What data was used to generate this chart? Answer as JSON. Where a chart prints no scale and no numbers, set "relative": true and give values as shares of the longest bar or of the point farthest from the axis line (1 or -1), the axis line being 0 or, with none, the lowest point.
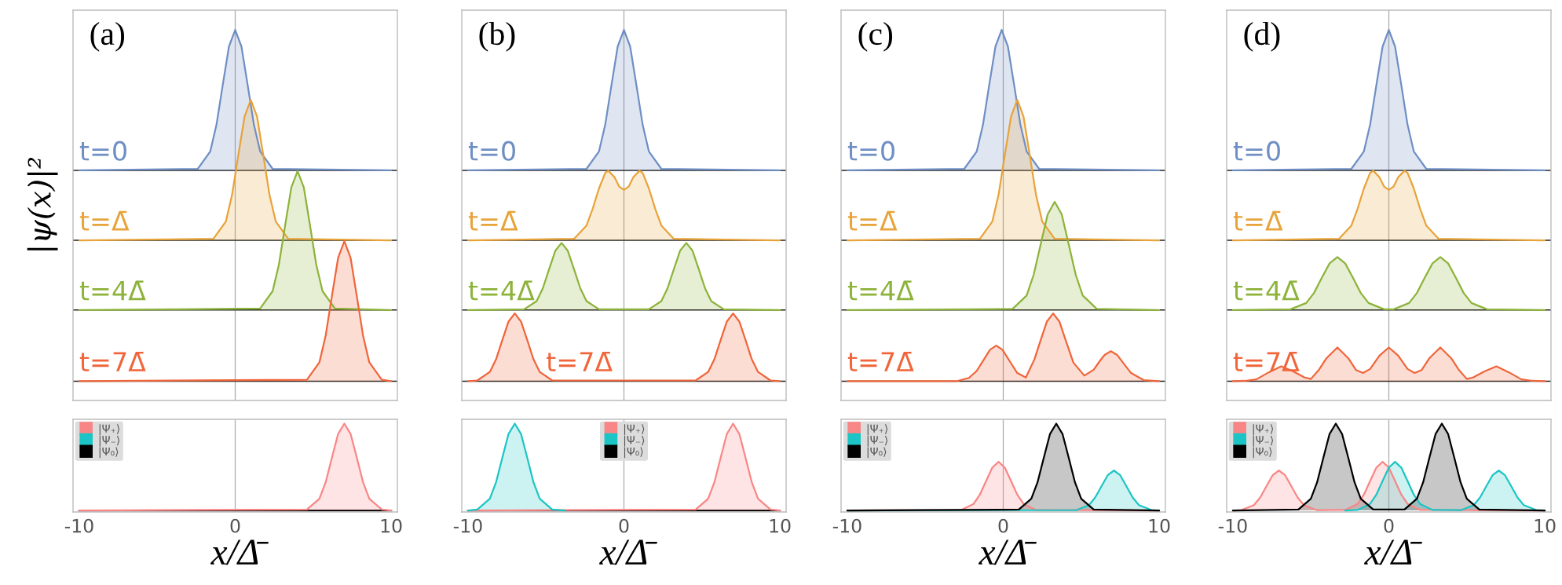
{
  "chart_data": [
    {
      "type": "area",
      "relative": true,
      "xlim": [
        -10.4,
        10.4
      ],
      "annotations": [
        "(a)"
      ],
      "ylabel": "|ψ(x)|²",
      "ref_lines": [
        {
          "axis": "x",
          "value": 0,
          "color": "#aaaaaa"
        },
        {
          "axis": "y",
          "value": 0.621,
          "color": "#222222"
        },
        {
          "axis": "y",
          "value": 0.432,
          "color": "#222222"
        },
        {
          "axis": "y",
          "value": 0.244,
          "color": "#222222"
        },
        {
          "axis": "y",
          "value": 0.052,
          "color": "#222222"
        }
      ],
      "series": [
        {
          "name": "t=0",
          "color": "#6f8fc4",
          "x": [
            -10,
            -2.4,
            -1.6,
            -1.2,
            -0.8,
            -0.4,
            0,
            0.4,
            0.8,
            1.2,
            1.6,
            2.4,
            10
          ],
          "values": [
            0.621,
            0.625,
            0.672,
            0.744,
            0.851,
            0.955,
            1,
            0.955,
            0.851,
            0.744,
            0.672,
            0.625,
            0.621
          ]
        },
        {
          "name": "t=Δ̄",
          "color": "#e8a33a",
          "x": [
            -10,
            -1.4,
            -0.6,
            -0.2,
            0.2,
            0.6,
            1,
            1.4,
            1.8,
            2.2,
            2.6,
            3.4,
            10
          ],
          "values": [
            0.432,
            0.436,
            0.483,
            0.555,
            0.662,
            0.766,
            0.811,
            0.766,
            0.662,
            0.555,
            0.483,
            0.436,
            0.432
          ]
        },
        {
          "name": "t=4Δ̄",
          "color": "#8db33a",
          "x": [
            -10,
            1.6,
            2.4,
            2.8,
            3.2,
            3.6,
            4,
            4.4,
            4.8,
            5.2,
            5.6,
            6.4,
            10
          ],
          "values": [
            0.244,
            0.248,
            0.295,
            0.366,
            0.472,
            0.575,
            0.619,
            0.575,
            0.472,
            0.366,
            0.295,
            0.248,
            0.244
          ]
        },
        {
          "name": "t=7Δ̄",
          "color": "#f0653a",
          "x": [
            -10,
            4.6,
            5.4,
            5.8,
            6.2,
            6.6,
            7,
            7.4,
            7.8,
            8.2,
            8.6,
            9.4,
            10
          ],
          "values": [
            0.052,
            0.056,
            0.103,
            0.175,
            0.281,
            0.385,
            0.43,
            0.385,
            0.281,
            0.175,
            0.103,
            0.056,
            0.052
          ]
        }
      ]
    },
    {
      "type": "area",
      "relative": true,
      "xlim": [
        -10.4,
        10.4
      ],
      "xticks": [
        -10,
        0,
        10
      ],
      "xlabel": "x/Δ̄",
      "legend": "top left",
      "ref_lines": [
        {
          "axis": "x",
          "value": 0,
          "color": "#aaaaaa"
        }
      ],
      "series": [
        {
          "name": "|Ψ₊⟩",
          "color": "#f98686",
          "x": [
            -10,
            4.6,
            5.4,
            5.8,
            6.2,
            6.6,
            7,
            7.4,
            7.8,
            8.2,
            8.6,
            9.4,
            10
          ],
          "values": [
            0,
            0.011,
            0.135,
            0.325,
            0.607,
            0.882,
            1,
            0.882,
            0.607,
            0.325,
            0.135,
            0.011,
            0
          ]
        },
        {
          "name": "|Ψ₋⟩",
          "type": "line",
          "color": "#1cc5c5",
          "values": [
            null
          ]
        },
        {
          "name": "|Ψ₀⟩",
          "type": "line",
          "color": "#000000",
          "x": [
            -10,
            10
          ],
          "values": [
            0,
            0
          ]
        }
      ]
    },
    {
      "type": "area",
      "relative": true,
      "xlim": [
        -10.4,
        10.4
      ],
      "annotations": [
        "(b)"
      ],
      "ref_lines": [
        {
          "axis": "x",
          "value": 0,
          "color": "#aaaaaa"
        },
        {
          "axis": "y",
          "value": 0.621,
          "color": "#222222"
        },
        {
          "axis": "y",
          "value": 0.432,
          "color": "#222222"
        },
        {
          "axis": "y",
          "value": 0.244,
          "color": "#222222"
        },
        {
          "axis": "y",
          "value": 0.052,
          "color": "#222222"
        }
      ],
      "series": [
        {
          "name": "t=0",
          "color": "#6f8fc4",
          "x": [
            -10,
            -2.4,
            -1.6,
            -1.2,
            -0.8,
            -0.4,
            0,
            0.4,
            0.8,
            1.2,
            1.6,
            2.4,
            10
          ],
          "values": [
            0.621,
            0.625,
            0.672,
            0.744,
            0.851,
            0.955,
            1,
            0.955,
            0.851,
            0.744,
            0.672,
            0.625,
            0.621
          ]
        },
        {
          "name": "t=Δ̄",
          "color": "#e8a33a",
          "x": [
            -10,
            -3.2,
            -2.4,
            -2,
            -1.6,
            -1.2,
            -1,
            -0.6,
            -0.3,
            0,
            0.3,
            0.6,
            1,
            1.2,
            1.6,
            2,
            2.4,
            3.2,
            10
          ],
          "values": [
            0.432,
            0.436,
            0.472,
            0.518,
            0.572,
            0.614,
            0.62,
            0.602,
            0.577,
            0.568,
            0.577,
            0.602,
            0.62,
            0.614,
            0.572,
            0.518,
            0.472,
            0.436,
            0.432
          ]
        },
        {
          "name": "t=4Δ̄",
          "color": "#8db33a",
          "x": [
            -10,
            -6.4,
            -5.6,
            -5.2,
            -4.8,
            -4.4,
            -4,
            -3.6,
            -3.2,
            -2.8,
            -2.4,
            -1.6,
            1.6,
            2.4,
            2.8,
            3.2,
            3.6,
            4,
            4.4,
            4.8,
            5.2,
            5.6,
            6.4,
            10
          ],
          "values": [
            0.244,
            0.246,
            0.268,
            0.303,
            0.354,
            0.404,
            0.425,
            0.404,
            0.354,
            0.303,
            0.268,
            0.246,
            0.246,
            0.268,
            0.303,
            0.354,
            0.404,
            0.425,
            0.404,
            0.354,
            0.303,
            0.268,
            0.246,
            0.244
          ]
        },
        {
          "name": "t=7Δ̄",
          "color": "#f0653a",
          "x": [
            -10,
            -9.4,
            -8.6,
            -8.2,
            -7.8,
            -7.4,
            -7,
            -6.6,
            -6.2,
            -5.8,
            -5.4,
            -4.6,
            4.6,
            5.4,
            5.8,
            6.2,
            6.6,
            7,
            7.4,
            7.8,
            8.2,
            8.6,
            9.4,
            10
          ],
          "values": [
            0.052,
            0.054,
            0.077,
            0.111,
            0.163,
            0.213,
            0.235,
            0.213,
            0.163,
            0.111,
            0.077,
            0.054,
            0.054,
            0.077,
            0.111,
            0.163,
            0.213,
            0.235,
            0.213,
            0.163,
            0.111,
            0.077,
            0.054,
            0.052
          ]
        }
      ]
    },
    {
      "type": "area",
      "relative": true,
      "xlim": [
        -10.4,
        10.4
      ],
      "xticks": [
        -10,
        0,
        10
      ],
      "xlabel": "x/Δ̄",
      "legend": "top",
      "ref_lines": [
        {
          "axis": "x",
          "value": 0,
          "color": "#aaaaaa"
        }
      ],
      "series": [
        {
          "name": "|Ψ₊⟩",
          "color": "#f98686",
          "x": [
            -10,
            4.6,
            5.4,
            5.8,
            6.2,
            6.6,
            7,
            7.4,
            7.8,
            8.2,
            8.6,
            9.4,
            10
          ],
          "values": [
            0,
            0.011,
            0.135,
            0.325,
            0.607,
            0.882,
            1,
            0.882,
            0.607,
            0.325,
            0.135,
            0.011,
            0
          ]
        },
        {
          "name": "|Ψ₋⟩",
          "color": "#1cc5c5",
          "x": [
            -10,
            -9.4,
            -8.6,
            -8.2,
            -7.8,
            -7.4,
            -7,
            -6.6,
            -6.2,
            -5.8,
            -5.4,
            -4.6,
            -3.8
          ],
          "values": [
            0,
            0.011,
            0.135,
            0.325,
            0.607,
            0.882,
            1,
            0.882,
            0.607,
            0.325,
            0.135,
            0.011,
            0
          ]
        },
        {
          "name": "|Ψ₀⟩",
          "type": "line",
          "color": "#000000",
          "x": [
            -10,
            10
          ],
          "values": [
            0,
            0
          ]
        }
      ]
    },
    {
      "type": "area",
      "relative": true,
      "xlim": [
        -10.4,
        10.4
      ],
      "annotations": [
        "(c)"
      ],
      "ref_lines": [
        {
          "axis": "x",
          "value": 0,
          "color": "#aaaaaa"
        },
        {
          "axis": "y",
          "value": 0.621,
          "color": "#222222"
        },
        {
          "axis": "y",
          "value": 0.432,
          "color": "#222222"
        },
        {
          "axis": "y",
          "value": 0.244,
          "color": "#222222"
        },
        {
          "axis": "y",
          "value": 0.052,
          "color": "#222222"
        }
      ],
      "series": [
        {
          "name": "t=0",
          "color": "#6f8fc4",
          "x": [
            -10,
            -2.5,
            -1.7,
            -1.3,
            -0.9,
            -0.5,
            -0.1,
            0.3,
            0.7,
            1.1,
            1.5,
            2.3,
            10
          ],
          "values": [
            0.621,
            0.625,
            0.672,
            0.744,
            0.851,
            0.955,
            1,
            0.955,
            0.851,
            0.744,
            0.672,
            0.625,
            0.621
          ]
        },
        {
          "name": "t=Δ̄",
          "color": "#e8a33a",
          "x": [
            -10,
            -1.5,
            -0.7,
            -0.3,
            0.1,
            0.5,
            0.9,
            1.3,
            1.7,
            2.1,
            2.5,
            3.3,
            10
          ],
          "values": [
            0.432,
            0.436,
            0.483,
            0.555,
            0.662,
            0.766,
            0.811,
            0.766,
            0.662,
            0.555,
            0.483,
            0.436,
            0.432
          ]
        },
        {
          "name": "t=4Δ̄",
          "color": "#8db33a",
          "x": [
            -10,
            0.6,
            1.5,
            1.95,
            2.4,
            2.85,
            3.3,
            3.75,
            4.2,
            4.65,
            5.1,
            6.0,
            10
          ],
          "values": [
            0.244,
            0.247,
            0.283,
            0.339,
            0.421,
            0.502,
            0.536,
            0.502,
            0.421,
            0.339,
            0.283,
            0.247,
            0.244
          ]
        },
        {
          "name": "t=7Δ̄",
          "color": "#f0653a",
          "x": [
            -10,
            -3,
            -2.2,
            -1.7,
            -1.25,
            -0.85,
            -0.45,
            -0.05,
            0.4,
            0.9,
            1.45,
            2.0,
            2.4,
            2.8,
            3.2,
            3.6,
            4.0,
            4.5,
            5.2,
            5.8,
            6.2,
            6.5,
            6.9,
            7.3,
            7.7,
            8.2,
            9,
            10
          ],
          "values": [
            0.052,
            0.052,
            0.061,
            0.08,
            0.11,
            0.137,
            0.148,
            0.137,
            0.107,
            0.074,
            0.062,
            0.111,
            0.163,
            0.213,
            0.235,
            0.213,
            0.163,
            0.102,
            0.067,
            0.083,
            0.107,
            0.123,
            0.133,
            0.123,
            0.101,
            0.074,
            0.055,
            0.052
          ]
        }
      ]
    },
    {
      "type": "area",
      "relative": true,
      "xlim": [
        -10.4,
        10.4
      ],
      "xticks": [
        -10,
        0,
        10
      ],
      "xlabel": "x/Δ̄",
      "legend": "top left",
      "ref_lines": [
        {
          "axis": "x",
          "value": 0,
          "color": "#aaaaaa"
        }
      ],
      "series": [
        {
          "name": "|Ψ₊⟩",
          "color": "#f98686",
          "x": [
            -10,
            -2.7,
            -1.9,
            -1.5,
            -1.1,
            -0.7,
            -0.3,
            0.1,
            0.5,
            0.9,
            1.3,
            2.1,
            10
          ],
          "values": [
            0,
            0.006,
            0.076,
            0.182,
            0.34,
            0.494,
            0.56,
            0.494,
            0.34,
            0.182,
            0.076,
            0.006,
            0
          ]
        },
        {
          "name": "|Ψ₋⟩",
          "color": "#1cc5c5",
          "x": [
            -10,
            4.7,
            5.5,
            5.9,
            6.3,
            6.7,
            7.1,
            7.5,
            7.9,
            8.3,
            8.7,
            9.5,
            10
          ],
          "values": [
            0,
            0.005,
            0.062,
            0.15,
            0.279,
            0.406,
            0.46,
            0.406,
            0.279,
            0.15,
            0.062,
            0.005,
            0
          ]
        },
        {
          "name": "|Ψ₀⟩",
          "color": "#000000",
          "x": [
            -10,
            1.0,
            1.8,
            2.2,
            2.6,
            3.0,
            3.4,
            3.8,
            4.2,
            4.6,
            5.0,
            5.8,
            10
          ],
          "values": [
            0,
            0.011,
            0.135,
            0.325,
            0.607,
            0.882,
            1,
            0.882,
            0.607,
            0.325,
            0.135,
            0.011,
            0
          ]
        }
      ]
    },
    {
      "type": "area",
      "relative": true,
      "xlim": [
        -10.4,
        10.4
      ],
      "annotations": [
        "(d)"
      ],
      "ref_lines": [
        {
          "axis": "x",
          "value": 0,
          "color": "#aaaaaa"
        },
        {
          "axis": "y",
          "value": 0.621,
          "color": "#222222"
        },
        {
          "axis": "y",
          "value": 0.432,
          "color": "#222222"
        },
        {
          "axis": "y",
          "value": 0.244,
          "color": "#222222"
        },
        {
          "axis": "y",
          "value": 0.052,
          "color": "#222222"
        }
      ],
      "series": [
        {
          "name": "t=0",
          "color": "#6f8fc4",
          "x": [
            -10,
            -2.4,
            -1.6,
            -1.2,
            -0.8,
            -0.4,
            0,
            0.4,
            0.8,
            1.2,
            1.6,
            2.4,
            10
          ],
          "values": [
            0.621,
            0.625,
            0.672,
            0.744,
            0.851,
            0.955,
            1,
            0.955,
            0.851,
            0.744,
            0.672,
            0.625,
            0.621
          ]
        },
        {
          "name": "t=Δ̄",
          "color": "#e8a33a",
          "x": [
            -10,
            -3.2,
            -2.4,
            -2,
            -1.6,
            -1.2,
            -1,
            -0.6,
            -0.3,
            0,
            0.3,
            0.6,
            1,
            1.2,
            1.6,
            2,
            2.4,
            3.2,
            10
          ],
          "values": [
            0.432,
            0.436,
            0.472,
            0.518,
            0.572,
            0.614,
            0.62,
            0.602,
            0.577,
            0.568,
            0.577,
            0.602,
            0.62,
            0.614,
            0.572,
            0.518,
            0.472,
            0.436,
            0.432
          ]
        },
        {
          "name": "t=4Δ̄",
          "color": "#8db33a",
          "x": [
            -10,
            -6.3,
            -5.3,
            -4.8,
            -4.3,
            -3.8,
            -3.3,
            -2.8,
            -2.3,
            -1.8,
            -1.3,
            -0.3,
            0.3,
            1.3,
            1.8,
            2.3,
            2.8,
            3.3,
            3.8,
            4.3,
            4.8,
            5.3,
            6.3,
            10
          ],
          "values": [
            0.244,
            0.246,
            0.263,
            0.29,
            0.331,
            0.37,
            0.387,
            0.37,
            0.331,
            0.29,
            0.263,
            0.246,
            0.246,
            0.263,
            0.29,
            0.331,
            0.37,
            0.387,
            0.37,
            0.331,
            0.29,
            0.263,
            0.246,
            0.244
          ]
        },
        {
          "name": "t=7Δ̄",
          "color": "#f0653a",
          "x": [
            -10,
            -9.2,
            -8.5,
            -7.7,
            -6.9,
            -6.1,
            -5.4,
            -5.0,
            -4.5,
            -4.0,
            -3.3,
            -2.6,
            -2.1,
            -1.65,
            -1.2,
            -0.6,
            0,
            0.6,
            1.2,
            1.65,
            2.1,
            2.6,
            3.3,
            4.0,
            4.5,
            5.0,
            5.4,
            6.1,
            6.9,
            7.7,
            8.5,
            9.2,
            10
          ],
          "values": [
            0.052,
            0.053,
            0.057,
            0.076,
            0.092,
            0.078,
            0.062,
            0.058,
            0.082,
            0.114,
            0.143,
            0.114,
            0.082,
            0.074,
            0.085,
            0.121,
            0.143,
            0.121,
            0.085,
            0.074,
            0.082,
            0.114,
            0.143,
            0.114,
            0.082,
            0.058,
            0.062,
            0.078,
            0.092,
            0.076,
            0.057,
            0.053,
            0.052
          ]
        }
      ]
    },
    {
      "type": "area",
      "relative": true,
      "xlim": [
        -10.4,
        10.4
      ],
      "xticks": [
        -10,
        0,
        10
      ],
      "xlabel": "x/Δ̄",
      "legend": "top left",
      "ref_lines": [
        {
          "axis": "x",
          "value": 0,
          "color": "#aaaaaa"
        }
      ],
      "series": [
        {
          "name": "|Ψ₊⟩",
          "color": "#f98686",
          "x": [
            -10,
            -9.45,
            -8.65,
            -8.25,
            -7.85,
            -7.45,
            -7.05,
            -6.65,
            -6.25,
            -5.85,
            -5.45,
            -4.65,
            -2.8,
            -2.0,
            -1.6,
            -1.2,
            -0.8,
            -0.4,
            0,
            0.4,
            0.8,
            1.2,
            2.0,
            10
          ],
          "values": [
            0,
            0.005,
            0.062,
            0.15,
            0.279,
            0.406,
            0.46,
            0.406,
            0.279,
            0.15,
            0.062,
            0.005,
            0.006,
            0.076,
            0.182,
            0.34,
            0.494,
            0.56,
            0.494,
            0.34,
            0.182,
            0.076,
            0.006,
            0
          ]
        },
        {
          "name": "|Ψ₋⟩",
          "color": "#1cc5c5",
          "x": [
            -2.8,
            -2.0,
            -1.2,
            -0.8,
            -0.4,
            0,
            0.4,
            0.8,
            1.2,
            1.6,
            2.0,
            2.8,
            4.65,
            5.45,
            5.85,
            6.25,
            6.65,
            7.05,
            7.45,
            7.85,
            8.25,
            8.65,
            9.45,
            10
          ],
          "values": [
            0,
            0.006,
            0.076,
            0.182,
            0.34,
            0.494,
            0.56,
            0.494,
            0.34,
            0.182,
            0.076,
            0.006,
            0.005,
            0.062,
            0.15,
            0.279,
            0.406,
            0.46,
            0.406,
            0.279,
            0.15,
            0.062,
            0.005,
            0
          ]
        },
        {
          "name": "|Ψ₀⟩",
          "color": "#000000",
          "x": [
            -10,
            -5.8,
            -5.0,
            -4.6,
            -4.2,
            -3.8,
            -3.4,
            -3.0,
            -2.6,
            -2.2,
            -1.8,
            -1.0,
            1.0,
            1.8,
            2.2,
            2.6,
            3.0,
            3.4,
            3.8,
            4.2,
            4.6,
            5.0,
            5.8,
            10
          ],
          "values": [
            0,
            0.011,
            0.135,
            0.325,
            0.607,
            0.882,
            1,
            0.882,
            0.607,
            0.325,
            0.135,
            0.011,
            0.011,
            0.135,
            0.325,
            0.607,
            0.882,
            1,
            0.882,
            0.607,
            0.325,
            0.135,
            0.011,
            0
          ]
        }
      ]
    }
  ]
}
